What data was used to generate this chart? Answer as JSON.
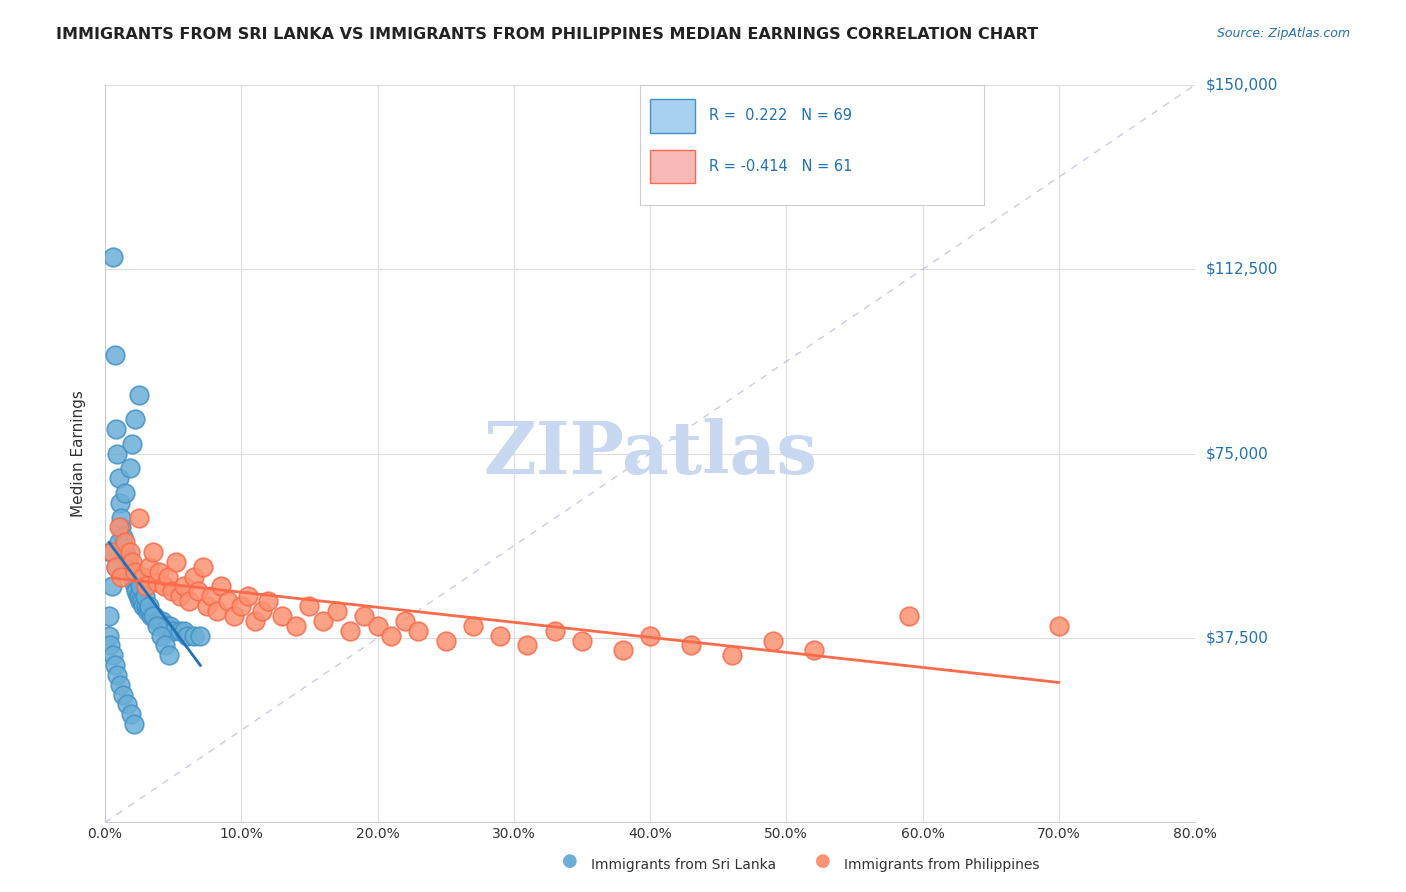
{
  "title": "IMMIGRANTS FROM SRI LANKA VS IMMIGRANTS FROM PHILIPPINES MEDIAN EARNINGS CORRELATION CHART",
  "source_text": "Source: ZipAtlas.com",
  "xlabel": "",
  "ylabel": "Median Earnings",
  "xmin": 0.0,
  "xmax": 0.8,
  "ymin": 0,
  "ymax": 150000,
  "yticks": [
    37500,
    75000,
    112500,
    150000
  ],
  "ytick_labels": [
    "$37,500",
    "$75,000",
    "$112,500",
    "$150,000"
  ],
  "xticks": [
    0.0,
    0.1,
    0.2,
    0.3,
    0.4,
    0.5,
    0.6,
    0.7,
    0.8
  ],
  "xtick_labels": [
    "0.0%",
    "10.0%",
    "20.0%",
    "30.0%",
    "40.0%",
    "50.0%",
    "60.0%",
    "70.0%",
    "80.0%"
  ],
  "sri_lanka_color": "#6baed6",
  "sri_lanka_edge": "#4292c6",
  "philippines_color": "#fc9272",
  "philippines_edge": "#fb6a4a",
  "sri_lanka_R": 0.222,
  "sri_lanka_N": 69,
  "philippines_R": -0.414,
  "philippines_N": 61,
  "sri_lanka_line_color": "#2171b5",
  "philippines_line_color": "#fb6a4a",
  "legend_sri_lanka_color": "#a8d0f0",
  "legend_philippines_color": "#f9b8b8",
  "watermark_color": "#c8d8f0",
  "background_color": "#ffffff",
  "sri_lanka_x": [
    0.004,
    0.006,
    0.007,
    0.008,
    0.009,
    0.01,
    0.011,
    0.012,
    0.013,
    0.014,
    0.015,
    0.016,
    0.017,
    0.018,
    0.019,
    0.02,
    0.021,
    0.022,
    0.023,
    0.024,
    0.025,
    0.026,
    0.027,
    0.028,
    0.03,
    0.031,
    0.032,
    0.034,
    0.036,
    0.038,
    0.04,
    0.042,
    0.045,
    0.048,
    0.05,
    0.055,
    0.058,
    0.06,
    0.065,
    0.07,
    0.003,
    0.005,
    0.008,
    0.01,
    0.012,
    0.015,
    0.018,
    0.02,
    0.022,
    0.025,
    0.003,
    0.004,
    0.006,
    0.007,
    0.009,
    0.011,
    0.013,
    0.016,
    0.019,
    0.021,
    0.023,
    0.026,
    0.029,
    0.032,
    0.035,
    0.038,
    0.041,
    0.044,
    0.047
  ],
  "sri_lanka_y": [
    55000,
    115000,
    95000,
    80000,
    75000,
    70000,
    65000,
    60000,
    58000,
    56000,
    55000,
    54000,
    53000,
    52000,
    51000,
    50000,
    49000,
    48000,
    47000,
    46000,
    46000,
    45000,
    45000,
    44000,
    44000,
    43000,
    43000,
    42000,
    42000,
    41000,
    41000,
    41000,
    40000,
    40000,
    39000,
    39000,
    39000,
    38000,
    38000,
    38000,
    42000,
    48000,
    52000,
    57000,
    62000,
    67000,
    72000,
    77000,
    82000,
    87000,
    38000,
    36000,
    34000,
    32000,
    30000,
    28000,
    26000,
    24000,
    22000,
    20000,
    50000,
    48000,
    46000,
    44000,
    42000,
    40000,
    38000,
    36000,
    34000
  ],
  "philippines_x": [
    0.005,
    0.008,
    0.01,
    0.012,
    0.015,
    0.018,
    0.02,
    0.022,
    0.025,
    0.028,
    0.03,
    0.032,
    0.035,
    0.038,
    0.04,
    0.043,
    0.046,
    0.049,
    0.052,
    0.055,
    0.058,
    0.062,
    0.065,
    0.068,
    0.072,
    0.075,
    0.078,
    0.082,
    0.085,
    0.09,
    0.095,
    0.1,
    0.105,
    0.11,
    0.115,
    0.12,
    0.13,
    0.14,
    0.15,
    0.16,
    0.17,
    0.18,
    0.19,
    0.2,
    0.21,
    0.22,
    0.23,
    0.25,
    0.27,
    0.29,
    0.31,
    0.33,
    0.35,
    0.38,
    0.4,
    0.43,
    0.46,
    0.49,
    0.52,
    0.59,
    0.7
  ],
  "philippines_y": [
    55000,
    52000,
    60000,
    50000,
    57000,
    55000,
    53000,
    51000,
    62000,
    50000,
    48000,
    52000,
    55000,
    49000,
    51000,
    48000,
    50000,
    47000,
    53000,
    46000,
    48000,
    45000,
    50000,
    47000,
    52000,
    44000,
    46000,
    43000,
    48000,
    45000,
    42000,
    44000,
    46000,
    41000,
    43000,
    45000,
    42000,
    40000,
    44000,
    41000,
    43000,
    39000,
    42000,
    40000,
    38000,
    41000,
    39000,
    37000,
    40000,
    38000,
    36000,
    39000,
    37000,
    35000,
    38000,
    36000,
    34000,
    37000,
    35000,
    42000,
    40000
  ]
}
